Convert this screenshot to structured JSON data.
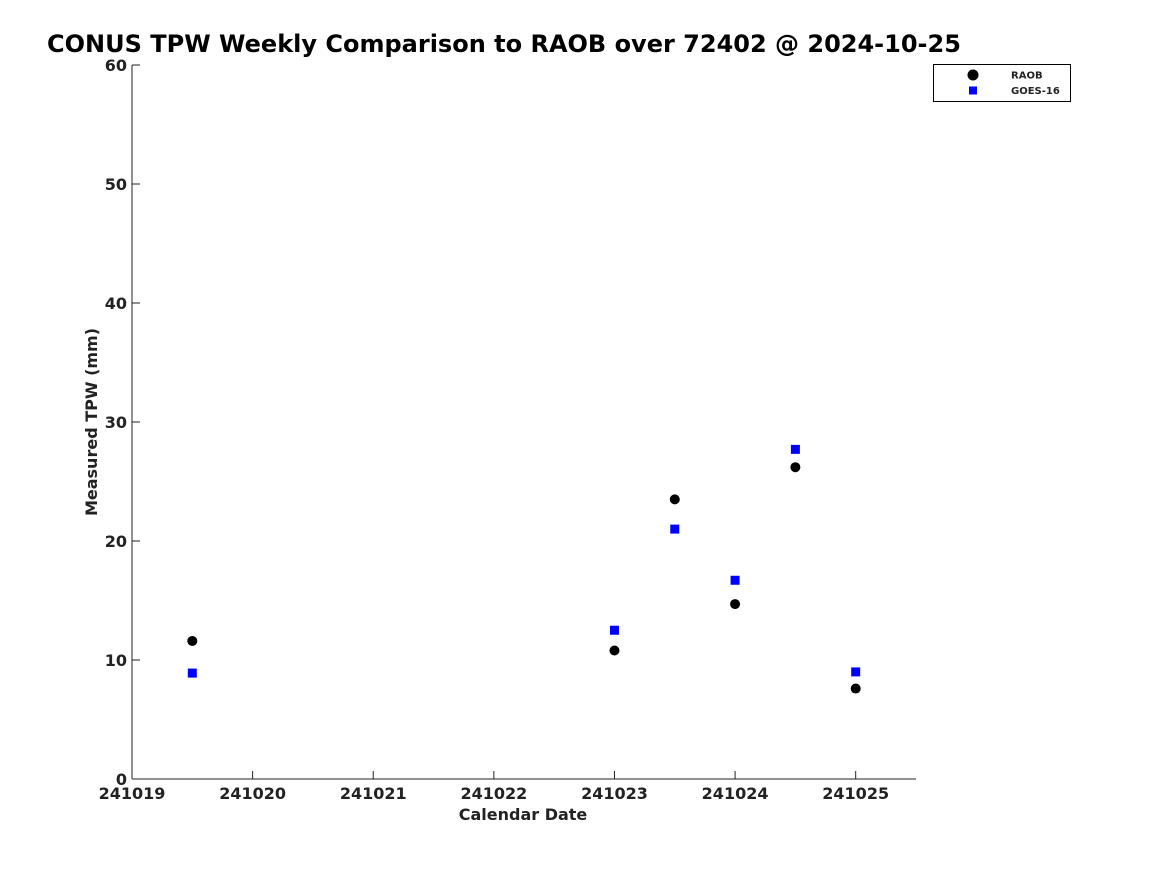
{
  "chart_data": {
    "type": "scatter",
    "title": "CONUS TPW Weekly Comparison to RAOB over 72402 @ 2024-10-25",
    "xlabel": "Calendar Date",
    "ylabel": "Measured TPW (mm)",
    "xlim": [
      "2024-10-19",
      "2024-10-25 12:00"
    ],
    "ylim": [
      0,
      60
    ],
    "x_ticks": [
      "2024-10-19",
      "2024-10-20",
      "2024-10-21",
      "2024-10-22",
      "2024-10-23",
      "2024-10-24",
      "2024-10-25"
    ],
    "x_tick_labels": [
      "241019",
      "241020",
      "241021",
      "241022",
      "241023",
      "241024",
      "241025"
    ],
    "y_ticks": [
      0,
      10,
      20,
      30,
      40,
      50,
      60
    ],
    "y_tick_labels": [
      "0",
      "10",
      "20",
      "30",
      "40",
      "50",
      "60"
    ],
    "grid": false,
    "legend_position": "top-right",
    "series": [
      {
        "name": "RAOB",
        "marker": "circle",
        "color": "#000000",
        "points": [
          {
            "x": "2024-10-19 12:00",
            "y": 11.6
          },
          {
            "x": "2024-10-23 00:00",
            "y": 10.8
          },
          {
            "x": "2024-10-23 12:00",
            "y": 23.5
          },
          {
            "x": "2024-10-24 00:00",
            "y": 14.7
          },
          {
            "x": "2024-10-24 12:00",
            "y": 26.2
          },
          {
            "x": "2024-10-25 00:00",
            "y": 7.6
          }
        ]
      },
      {
        "name": "GOES-16",
        "marker": "square",
        "color": "#0000ff",
        "points": [
          {
            "x": "2024-10-19 12:00",
            "y": 8.9
          },
          {
            "x": "2024-10-23 00:00",
            "y": 12.5
          },
          {
            "x": "2024-10-23 12:00",
            "y": 21.0
          },
          {
            "x": "2024-10-24 00:00",
            "y": 16.7
          },
          {
            "x": "2024-10-24 12:00",
            "y": 27.7
          },
          {
            "x": "2024-10-25 00:00",
            "y": 9.0
          }
        ]
      }
    ]
  }
}
